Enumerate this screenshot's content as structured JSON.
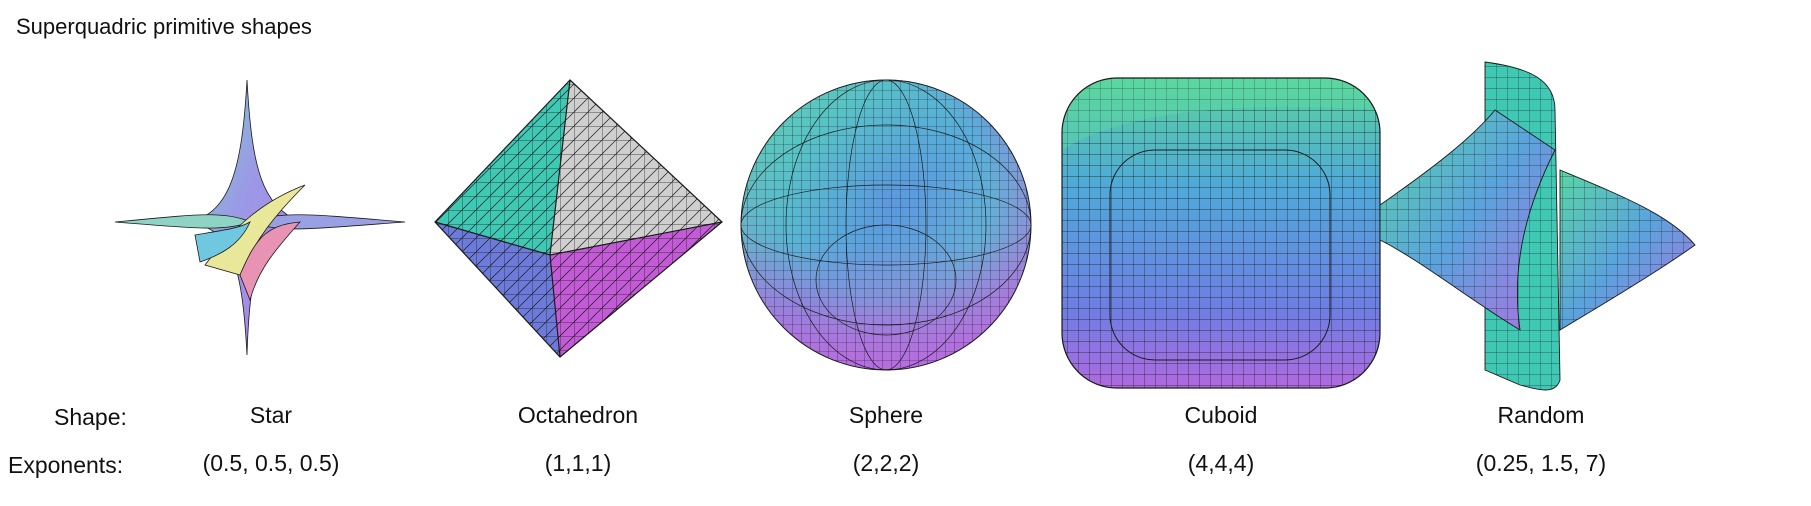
{
  "title": "Superquadric primitive shapes",
  "row_labels": {
    "shape": "Shape:",
    "exponents": "Exponents:"
  },
  "shapes": [
    {
      "name": "Star",
      "exponents": "(0.5, 0.5, 0.5)"
    },
    {
      "name": "Octahedron",
      "exponents": "(1,1,1)"
    },
    {
      "name": "Sphere",
      "exponents": "(2,2,2)"
    },
    {
      "name": "Cuboid",
      "exponents": "(4,4,4)"
    },
    {
      "name": "Random",
      "exponents": "(0.25, 1.5, 7)"
    }
  ],
  "colors": {
    "teal": "#3fc9b5",
    "gray": "#cfcfcf",
    "blue": "#6c7bd9",
    "magenta": "#c45bd6",
    "green": "#6fe08d",
    "pink": "#e892b4",
    "yellow": "#e8e79a",
    "mesh": "#1a1a1a"
  }
}
